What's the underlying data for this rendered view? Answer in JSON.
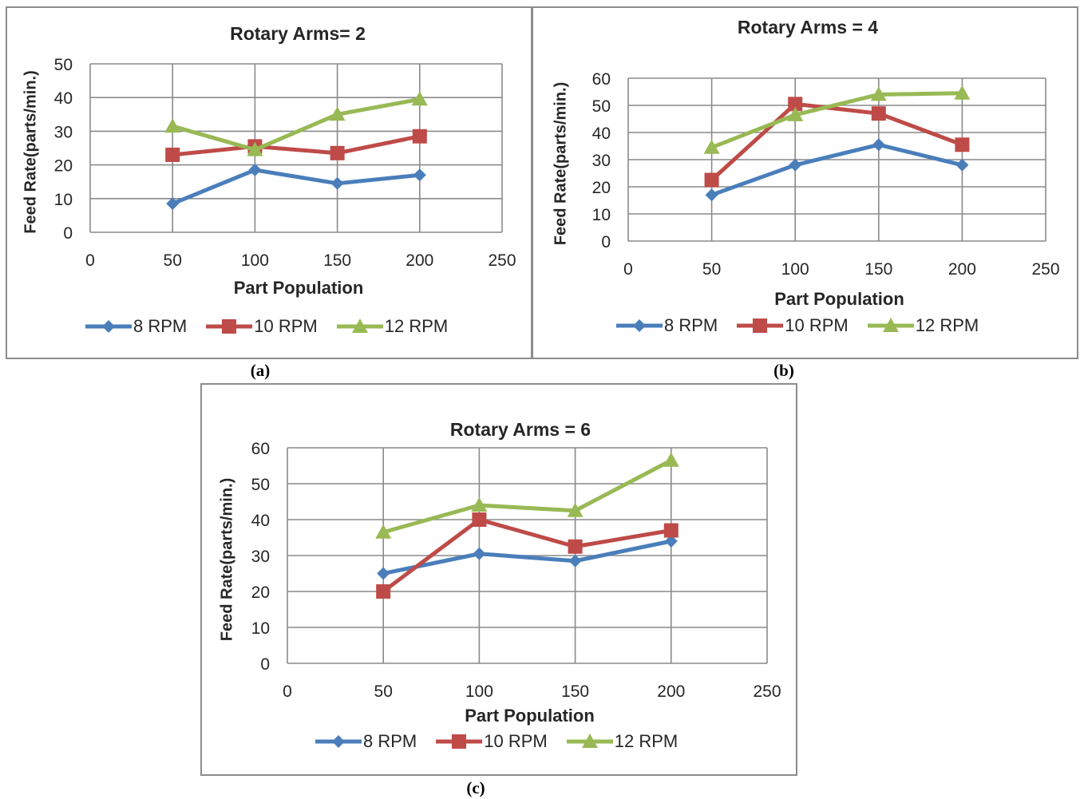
{
  "captions": [
    "(a)",
    "(b)",
    "(c)"
  ],
  "chart_data": [
    {
      "type": "line",
      "title": "Rotary Arms= 2",
      "xlabel": "Part Population",
      "ylabel": "Feed Rate(parts/min.)",
      "xlim": [
        0,
        250
      ],
      "ylim": [
        0,
        50
      ],
      "xticks": [
        0,
        50,
        100,
        150,
        200,
        250
      ],
      "yticks": [
        0,
        10,
        20,
        30,
        40,
        50
      ],
      "grid": true,
      "legend": "bottom",
      "x": [
        50,
        100,
        150,
        200
      ],
      "series": [
        {
          "name": "8 RPM",
          "values": [
            8.5,
            18.5,
            14.5,
            17
          ],
          "color": "#4a7ebb",
          "marker": "diamond"
        },
        {
          "name": "10 RPM",
          "values": [
            23,
            25.5,
            23.5,
            28.5
          ],
          "color": "#be4b48",
          "marker": "square"
        },
        {
          "name": "12 RPM",
          "values": [
            31.5,
            24.5,
            35,
            39.5
          ],
          "color": "#98b954",
          "marker": "triangle"
        }
      ]
    },
    {
      "type": "line",
      "title": "Rotary Arms = 4",
      "xlabel": "Part Population",
      "ylabel": "Feed Rate(parts/min.)",
      "xlim": [
        0,
        250
      ],
      "ylim": [
        0,
        60
      ],
      "xticks": [
        0,
        50,
        100,
        150,
        200,
        250
      ],
      "yticks": [
        0,
        10,
        20,
        30,
        40,
        50,
        60
      ],
      "grid": true,
      "legend": "bottom",
      "x": [
        50,
        100,
        150,
        200
      ],
      "series": [
        {
          "name": "8 RPM",
          "values": [
            17,
            28,
            35.5,
            28
          ],
          "color": "#4a7ebb",
          "marker": "diamond"
        },
        {
          "name": "10 RPM",
          "values": [
            22.5,
            50.5,
            47,
            35.5
          ],
          "color": "#be4b48",
          "marker": "square"
        },
        {
          "name": "12 RPM",
          "values": [
            34.5,
            46.5,
            54,
            54.5
          ],
          "color": "#98b954",
          "marker": "triangle"
        }
      ]
    },
    {
      "type": "line",
      "title": "Rotary Arms = 6",
      "xlabel": "Part Population",
      "ylabel": "Feed Rate(parts/min.)",
      "xlim": [
        0,
        250
      ],
      "ylim": [
        0,
        60
      ],
      "xticks": [
        0,
        50,
        100,
        150,
        200,
        250
      ],
      "yticks": [
        0,
        10,
        20,
        30,
        40,
        50,
        60
      ],
      "grid": true,
      "legend": "bottom",
      "x": [
        50,
        100,
        150,
        200
      ],
      "series": [
        {
          "name": "8 RPM",
          "values": [
            25,
            30.5,
            28.5,
            34
          ],
          "color": "#4a7ebb",
          "marker": "diamond"
        },
        {
          "name": "10 RPM",
          "values": [
            20,
            40,
            32.5,
            37
          ],
          "color": "#be4b48",
          "marker": "square"
        },
        {
          "name": "12 RPM",
          "values": [
            36.5,
            44,
            42.5,
            56.5
          ],
          "color": "#98b954",
          "marker": "triangle"
        }
      ]
    }
  ]
}
